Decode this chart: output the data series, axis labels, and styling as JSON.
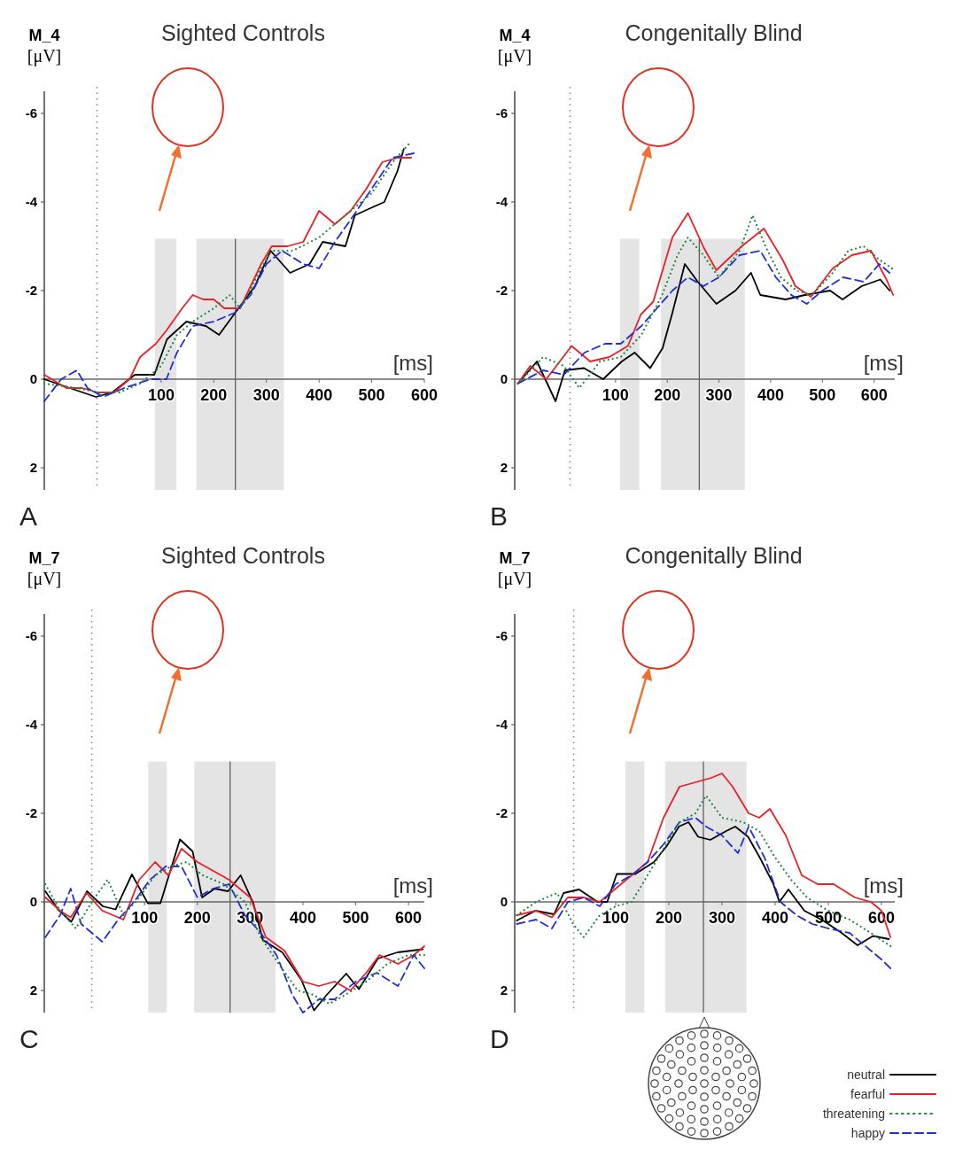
{
  "chart_data": [
    {
      "type": "line",
      "title": "Sighted Controls",
      "ylabel": "M_4 [μV]",
      "xlabel": "[ms]",
      "xlim": [
        -122,
        600
      ],
      "ylim": [
        2.5,
        -6.5
      ],
      "xticks": [
        100,
        200,
        300,
        400,
        500,
        600
      ],
      "yticks": [
        -6,
        -4,
        -2,
        0,
        2
      ],
      "legend": false,
      "annotations": [
        "A"
      ],
      "bands": [
        {
          "axis": "x",
          "from": 88,
          "to": 129,
          "color": "#e4e4e4"
        },
        {
          "axis": "x",
          "from": 167,
          "to": 333,
          "color": "#e4e4e4"
        }
      ],
      "ref_lines": [
        {
          "axis": "x",
          "value": -22,
          "line_style": "dotted",
          "color": "#888888"
        },
        {
          "axis": "x",
          "value": 241,
          "line_style": "solid",
          "color": "#555555"
        }
      ],
      "series": [
        {
          "color": "#000000",
          "line_style": "solid",
          "x": [
            -122,
            -86,
            -24,
            7,
            50,
            87,
            111,
            148,
            185,
            210,
            247,
            278,
            308,
            345,
            382,
            407,
            450,
            468,
            505,
            524,
            549,
            561
          ],
          "values": [
            0,
            0.15,
            0.4,
            0.3,
            -0.1,
            -0.1,
            -0.9,
            -1.3,
            -1.2,
            -1.0,
            -1.6,
            -2.1,
            -2.9,
            -2.4,
            -2.6,
            -3.1,
            -3.0,
            -3.7,
            -3.9,
            -4.0,
            -4.7,
            -5.2
          ]
        },
        {
          "color": "#e8202a",
          "line_style": "solid",
          "x": [
            -122,
            -80,
            -50,
            -20,
            10,
            40,
            60,
            90,
            110,
            140,
            160,
            180,
            200,
            220,
            250,
            290,
            310,
            340,
            370,
            400,
            430,
            460,
            490,
            520,
            550,
            575
          ],
          "values": [
            -0.1,
            0.2,
            0.2,
            0.3,
            0.3,
            0.0,
            -0.5,
            -0.8,
            -1.1,
            -1.6,
            -1.9,
            -1.8,
            -1.8,
            -1.6,
            -1.6,
            -2.6,
            -3.0,
            -3.0,
            -3.1,
            -3.8,
            -3.5,
            -3.8,
            -4.3,
            -4.9,
            -5.0,
            -5.0
          ]
        },
        {
          "color": "#1a8a3a",
          "line_style": "dotted",
          "x": [
            -122,
            -60,
            -20,
            20,
            60,
            100,
            130,
            160,
            200,
            230,
            250,
            290,
            310,
            350,
            400,
            450,
            500,
            540,
            570
          ],
          "values": [
            0.1,
            0.2,
            0.3,
            0.3,
            0.1,
            -0.3,
            -1.0,
            -1.3,
            -1.6,
            -1.9,
            -1.6,
            -2.5,
            -2.9,
            -2.9,
            -3.2,
            -3.7,
            -4.2,
            -4.9,
            -5.3
          ]
        },
        {
          "color": "#2030d0",
          "line_style": "dashed",
          "x": [
            -122,
            -90,
            -60,
            -40,
            -10,
            30,
            80,
            110,
            130,
            160,
            200,
            240,
            270,
            300,
            330,
            370,
            400,
            430,
            460,
            500,
            540,
            580
          ],
          "values": [
            0.5,
            0.0,
            -0.2,
            0.2,
            0.4,
            0.2,
            0.0,
            0.0,
            -0.6,
            -1.2,
            -1.3,
            -1.5,
            -1.9,
            -2.6,
            -2.9,
            -2.6,
            -2.5,
            -3.1,
            -3.6,
            -4.3,
            -5.0,
            -5.1
          ]
        }
      ]
    },
    {
      "type": "line",
      "title": "Congenitally Blind",
      "ylabel": "M_4 [μV]",
      "xlabel": "[ms]",
      "xlim": [
        -95,
        640
      ],
      "ylim": [
        2.5,
        -6.5
      ],
      "xticks": [
        100,
        200,
        300,
        400,
        500,
        600
      ],
      "yticks": [
        -6,
        -4,
        -2,
        0,
        2
      ],
      "legend": false,
      "annotations": [
        "B"
      ],
      "bands": [
        {
          "axis": "x",
          "from": 109,
          "to": 146,
          "color": "#e4e4e4"
        },
        {
          "axis": "x",
          "from": 188,
          "to": 350,
          "color": "#e4e4e4"
        }
      ],
      "ref_lines": [
        {
          "axis": "x",
          "value": 12,
          "line_style": "dotted",
          "color": "#888888"
        },
        {
          "axis": "x",
          "value": 262,
          "line_style": "solid",
          "color": "#555555"
        }
      ],
      "series": [
        {
          "color": "#000000",
          "line_style": "solid",
          "x": [
            -89,
            -52,
            -16,
            2,
            39,
            76,
            112,
            137,
            167,
            191,
            210,
            234,
            259,
            295,
            332,
            362,
            380,
            429,
            466,
            515,
            539,
            576,
            612,
            630
          ],
          "values": [
            0.1,
            -0.4,
            0.5,
            -0.2,
            -0.25,
            0,
            -0.4,
            -0.6,
            -0.25,
            -0.7,
            -1.5,
            -2.6,
            -2.2,
            -1.7,
            -2.0,
            -2.4,
            -1.9,
            -1.8,
            -1.9,
            -2.0,
            -1.8,
            -2.1,
            -2.25,
            -2.0
          ]
        },
        {
          "color": "#e8202a",
          "line_style": "solid",
          "x": [
            -89,
            -65,
            -34,
            15,
            51,
            88,
            124,
            149,
            173,
            210,
            240,
            271,
            295,
            344,
            387,
            423,
            448,
            478,
            520,
            557,
            594,
            624,
            637
          ],
          "values": [
            0.1,
            -0.3,
            0,
            -0.75,
            -0.4,
            -0.5,
            -0.75,
            -1.46,
            -1.75,
            -3.2,
            -3.75,
            -2.96,
            -2.46,
            -3.0,
            -3.4,
            -2.7,
            -2.1,
            -1.86,
            -2.5,
            -2.8,
            -2.9,
            -2.25,
            -1.9
          ]
        },
        {
          "color": "#1a8a3a",
          "line_style": "dotted",
          "x": [
            -89,
            -40,
            0,
            30,
            70,
            110,
            150,
            190,
            220,
            240,
            270,
            300,
            340,
            365,
            390,
            420,
            450,
            480,
            520,
            550,
            580,
            610,
            635
          ],
          "values": [
            0.1,
            -0.5,
            -0.3,
            0.2,
            -0.4,
            -0.5,
            -1.0,
            -1.9,
            -2.8,
            -3.2,
            -2.8,
            -2.3,
            -2.9,
            -3.7,
            -3.0,
            -2.3,
            -2.0,
            -1.9,
            -2.4,
            -2.9,
            -3.0,
            -2.7,
            -2.5
          ]
        },
        {
          "color": "#2030d0",
          "line_style": "dashed",
          "x": [
            -89,
            -40,
            0,
            40,
            80,
            110,
            150,
            180,
            210,
            240,
            270,
            300,
            340,
            380,
            410,
            440,
            470,
            500,
            540,
            580,
            610,
            630
          ],
          "values": [
            0.1,
            -0.2,
            -0.1,
            -0.6,
            -0.8,
            -0.8,
            -1.2,
            -1.6,
            -2.0,
            -2.3,
            -2.1,
            -2.3,
            -2.8,
            -2.9,
            -2.3,
            -1.9,
            -1.7,
            -2.0,
            -2.3,
            -2.2,
            -2.6,
            -2.4
          ]
        }
      ]
    },
    {
      "type": "line",
      "title": "Sighted Controls",
      "ylabel": "M_7 [μV]",
      "xlabel": "[ms]",
      "xlim": [
        -90,
        630
      ],
      "ylim": [
        2.5,
        -6.5
      ],
      "xticks": [
        100,
        200,
        300,
        400,
        500,
        600
      ],
      "yticks": [
        -6,
        -4,
        -2,
        0,
        2
      ],
      "legend": false,
      "annotations": [
        "C"
      ],
      "bands": [
        {
          "axis": "x",
          "from": 107,
          "to": 142,
          "color": "#e4e4e4"
        },
        {
          "axis": "x",
          "from": 194,
          "to": 348,
          "color": "#e4e4e4"
        }
      ],
      "ref_lines": [
        {
          "axis": "x",
          "value": 0,
          "line_style": "dotted",
          "color": "#888888"
        },
        {
          "axis": "x",
          "value": 262,
          "line_style": "solid",
          "color": "#555555"
        }
      ],
      "series": [
        {
          "color": "#000000",
          "line_style": "solid",
          "x": [
            -88,
            -64,
            -39,
            -9,
            21,
            45,
            76,
            106,
            130,
            167,
            191,
            209,
            233,
            258,
            282,
            306,
            324,
            361,
            397,
            421,
            445,
            482,
            506,
            542,
            579,
            627
          ],
          "values": [
            -0.24,
            0.17,
            0.45,
            -0.24,
            0.1,
            0.17,
            -0.62,
            0.03,
            0.03,
            -1.41,
            -1.14,
            -0.1,
            -0.3,
            -0.24,
            -0.6,
            0.03,
            0.86,
            1.14,
            1.76,
            2.45,
            2.1,
            1.62,
            1.97,
            1.28,
            1.14,
            1.07
          ]
        },
        {
          "color": "#e8202a",
          "line_style": "solid",
          "x": [
            -88,
            -60,
            -40,
            -10,
            20,
            60,
            90,
            120,
            145,
            170,
            200,
            230,
            260,
            300,
            330,
            365,
            400,
            430,
            460,
            490,
            520,
            545,
            580,
            610,
            630
          ],
          "values": [
            -0.1,
            0.2,
            0.35,
            -0.2,
            0.2,
            0.4,
            -0.5,
            -0.9,
            -0.6,
            -1.2,
            -0.9,
            -0.7,
            -0.5,
            -0.1,
            0.8,
            1.1,
            1.8,
            1.9,
            1.8,
            2.0,
            1.6,
            1.2,
            1.4,
            1.2,
            1.0
          ]
        },
        {
          "color": "#1a8a3a",
          "line_style": "dotted",
          "x": [
            -88,
            -60,
            -30,
            0,
            30,
            60,
            90,
            120,
            150,
            180,
            210,
            250,
            290,
            320,
            360,
            390,
            420,
            450,
            480,
            520,
            560,
            600,
            630
          ],
          "values": [
            -0.4,
            0.2,
            0.6,
            0.0,
            -0.5,
            0.3,
            -0.1,
            -0.6,
            -0.8,
            -0.9,
            -0.6,
            -0.4,
            0.0,
            0.8,
            1.5,
            2.0,
            2.1,
            2.3,
            2.1,
            1.8,
            1.4,
            1.2,
            1.2
          ]
        },
        {
          "color": "#2030d0",
          "line_style": "dashed",
          "x": [
            -88,
            -60,
            -40,
            -20,
            20,
            50,
            80,
            110,
            140,
            170,
            200,
            230,
            260,
            290,
            320,
            350,
            380,
            400,
            430,
            460,
            500,
            540,
            580,
            610,
            630
          ],
          "values": [
            0.8,
            0.3,
            -0.3,
            0.5,
            0.9,
            0.4,
            0.0,
            -0.5,
            -0.8,
            -0.8,
            -0.1,
            -0.3,
            -0.4,
            0.3,
            0.7,
            1.2,
            2.1,
            2.5,
            2.2,
            2.2,
            1.8,
            1.6,
            1.9,
            1.2,
            1.5
          ]
        }
      ]
    },
    {
      "type": "line",
      "title": "Congenitally Blind",
      "ylabel": "M_7 [μV]",
      "xlabel": "[ms]",
      "xlim": [
        -90,
        625
      ],
      "ylim": [
        2.5,
        -6.5
      ],
      "xticks": [
        100,
        200,
        300,
        400,
        500,
        600
      ],
      "yticks": [
        -6,
        -4,
        -2,
        0,
        2
      ],
      "legend": "bottom right",
      "annotations": [
        "D"
      ],
      "bands": [
        {
          "axis": "x",
          "from": 118,
          "to": 154,
          "color": "#e4e4e4"
        },
        {
          "axis": "x",
          "from": 193,
          "to": 346,
          "color": "#e4e4e4"
        }
      ],
      "ref_lines": [
        {
          "axis": "x",
          "value": 21,
          "line_style": "dotted",
          "color": "#888888"
        },
        {
          "axis": "x",
          "value": 265,
          "line_style": "solid",
          "color": "#555555"
        }
      ],
      "series": [
        {
          "name": "neutral",
          "color": "#000000",
          "line_style": "solid",
          "x": [
            -86,
            -51,
            -16,
            2,
            31,
            66,
            84,
            102,
            137,
            172,
            196,
            219,
            237,
            255,
            278,
            308,
            325,
            349,
            372,
            396,
            408,
            425,
            455,
            490,
            525,
            555,
            584,
            614
          ],
          "values": [
            0.42,
            0.2,
            0.28,
            -0.2,
            -0.28,
            0,
            0,
            -0.63,
            -0.63,
            -0.9,
            -1.26,
            -1.7,
            -1.8,
            -1.47,
            -1.4,
            -1.6,
            -1.7,
            -1.47,
            -0.98,
            -0.42,
            0,
            -0.28,
            0.2,
            0.42,
            0.7,
            0.98,
            0.77,
            0.84
          ]
        },
        {
          "name": "fearful",
          "color": "#e8202a",
          "line_style": "solid",
          "x": [
            -86,
            -50,
            -20,
            10,
            40,
            70,
            100,
            130,
            160,
            190,
            220,
            250,
            280,
            300,
            320,
            350,
            370,
            390,
            420,
            450,
            480,
            510,
            550,
            580,
            600,
            617
          ],
          "values": [
            0.3,
            0.2,
            0.35,
            -0.1,
            -0.1,
            0.0,
            -0.3,
            -0.6,
            -0.9,
            -1.9,
            -2.6,
            -2.7,
            -2.8,
            -2.9,
            -2.6,
            -2.0,
            -1.9,
            -2.1,
            -1.5,
            -0.6,
            -0.4,
            -0.4,
            -0.1,
            0.0,
            0.2,
            0.8
          ]
        },
        {
          "name": "threatening",
          "color": "#1a8a3a",
          "line_style": "dotted",
          "x": [
            -86,
            -50,
            -10,
            20,
            40,
            70,
            100,
            130,
            160,
            190,
            220,
            250,
            270,
            300,
            340,
            370,
            400,
            430,
            460,
            500,
            540,
            580,
            617
          ],
          "values": [
            0.3,
            0.0,
            -0.2,
            0.5,
            0.8,
            0.3,
            0.1,
            0.0,
            -0.6,
            -1.2,
            -1.8,
            -2.0,
            -2.4,
            -1.9,
            -1.8,
            -1.6,
            -1.0,
            -0.5,
            -0.1,
            0.2,
            0.4,
            0.7,
            1.0
          ]
        },
        {
          "name": "happy",
          "color": "#2030d0",
          "line_style": "dashed",
          "x": [
            -86,
            -50,
            -20,
            10,
            40,
            70,
            100,
            130,
            160,
            190,
            220,
            250,
            270,
            300,
            330,
            350,
            380,
            410,
            440,
            470,
            500,
            540,
            580,
            600,
            617
          ],
          "values": [
            0.5,
            0.4,
            0.6,
            0.0,
            -0.1,
            0.1,
            -0.4,
            -0.6,
            -0.9,
            -1.3,
            -1.8,
            -1.9,
            -1.7,
            -1.5,
            -1.1,
            -1.7,
            -1.0,
            0.0,
            0.3,
            0.5,
            0.6,
            0.7,
            1.1,
            1.3,
            1.5
          ]
        }
      ]
    }
  ]
}
